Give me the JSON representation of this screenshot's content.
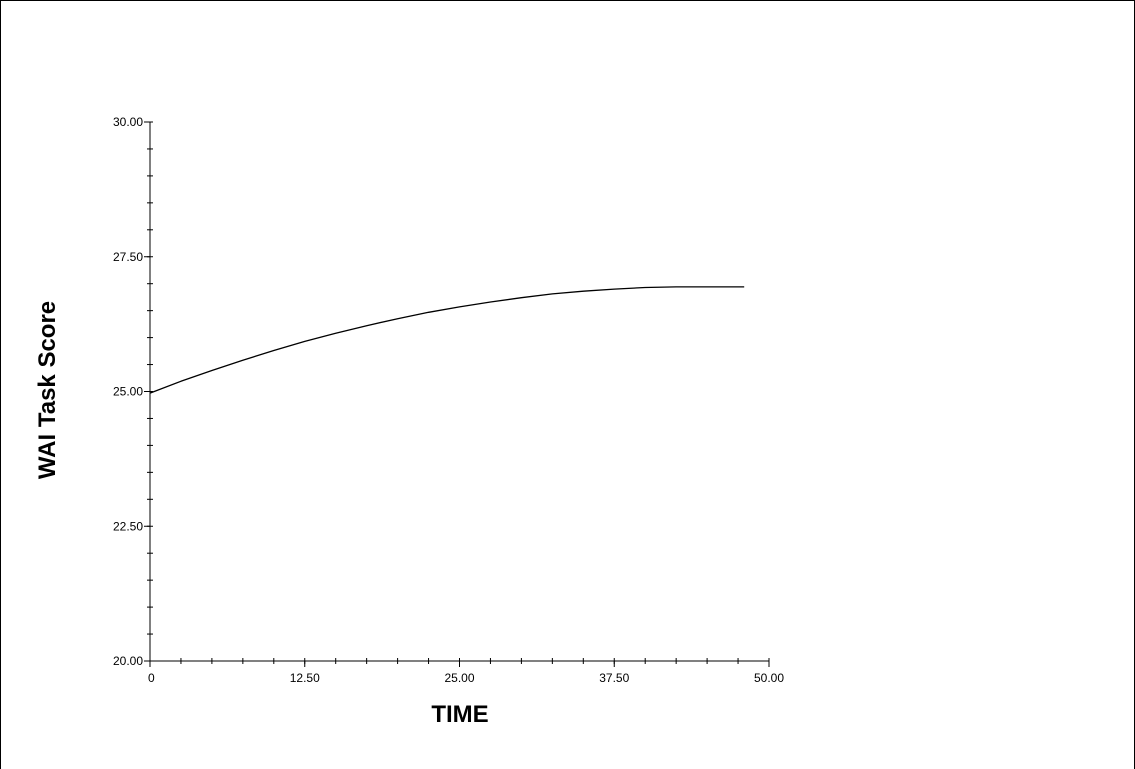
{
  "chart_data": {
    "type": "line",
    "title": "",
    "xlabel": "TIME",
    "ylabel": "WAI Task Score",
    "xlim": [
      0,
      50
    ],
    "ylim": [
      20,
      30
    ],
    "x_ticks": [
      0,
      12.5,
      25,
      37.5,
      50
    ],
    "x_tick_labels": [
      "0",
      "12.50",
      "25.00",
      "37.50",
      "50.00"
    ],
    "y_ticks": [
      20,
      22.5,
      25,
      27.5,
      30
    ],
    "y_tick_labels": [
      "20.00",
      "22.50",
      "25.00",
      "27.50",
      "30.00"
    ],
    "grid": false,
    "legend": "none",
    "series": [
      {
        "color": "#000000",
        "x": [
          0,
          2.5,
          5,
          7.5,
          10,
          12.5,
          15,
          17.5,
          20,
          22.5,
          25,
          27.5,
          30,
          32.5,
          35,
          37.5,
          40,
          42.5,
          45,
          48
        ],
        "y": [
          24.97,
          25.19,
          25.39,
          25.58,
          25.76,
          25.93,
          26.08,
          26.22,
          26.35,
          26.47,
          26.57,
          26.66,
          26.74,
          26.81,
          26.86,
          26.9,
          26.93,
          26.94,
          26.94,
          26.94
        ]
      }
    ]
  }
}
